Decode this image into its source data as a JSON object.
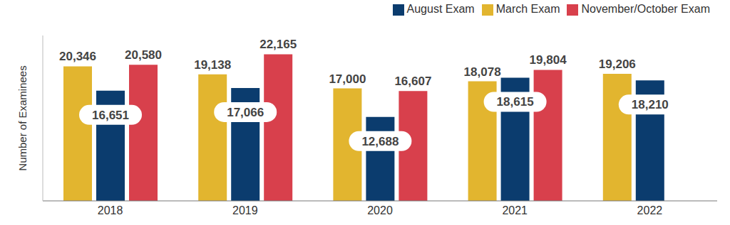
{
  "chart_data": {
    "type": "bar",
    "y_label": "Number of Examinees",
    "categories": [
      "2018",
      "2019",
      "2020",
      "2021",
      "2022"
    ],
    "series": [
      {
        "name": "March Exam",
        "color": "#E2B52F",
        "values": [
          20346,
          19138,
          17000,
          18078,
          19206
        ],
        "value_labels": [
          "20,346",
          "19,138",
          "17,000",
          "18,078",
          "19,206"
        ]
      },
      {
        "name": "August Exam",
        "color": "#0B3C6E",
        "values": [
          16651,
          17066,
          12688,
          18615,
          18210
        ],
        "value_labels": [
          "16,651",
          "17,066",
          "12,688",
          "18,615",
          "18,210"
        ]
      },
      {
        "name": "November/October Exam",
        "color": "#D8404C",
        "values": [
          20580,
          22165,
          16607,
          19804,
          null
        ],
        "value_labels": [
          "20,580",
          "22,165",
          "16,607",
          "19,804",
          null
        ]
      }
    ],
    "ylim": [
      0,
      25000
    ],
    "grid": false,
    "legend": "top-right",
    "data_labels": true,
    "tick_labels": "x"
  }
}
